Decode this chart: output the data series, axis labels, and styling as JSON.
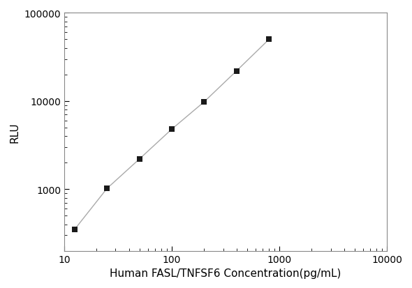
{
  "points_x": [
    12.5,
    25,
    50,
    100,
    200,
    400,
    800
  ],
  "points_y": [
    350,
    1020,
    2200,
    4800,
    9800,
    22000,
    50000
  ],
  "xlabel": "Human FASL/TNFSF6 Concentration(pg/mL)",
  "ylabel": "RLU",
  "xlim_low": 10,
  "xlim_high": 10000,
  "ylim_low": 200,
  "ylim_high": 100000,
  "xticks": [
    10,
    100,
    1000,
    10000
  ],
  "yticks": [
    1000,
    10000,
    100000
  ],
  "ytick_labels": [
    "1000",
    "10000",
    "100000"
  ],
  "line_color": "#aaaaaa",
  "marker_color": "#1a1a1a",
  "bg_color": "#ffffff",
  "marker_size": 6,
  "line_width": 1.0,
  "xlabel_fontsize": 11,
  "ylabel_fontsize": 11,
  "tick_fontsize": 10,
  "spine_color": "#888888",
  "spine_linewidth": 0.8
}
